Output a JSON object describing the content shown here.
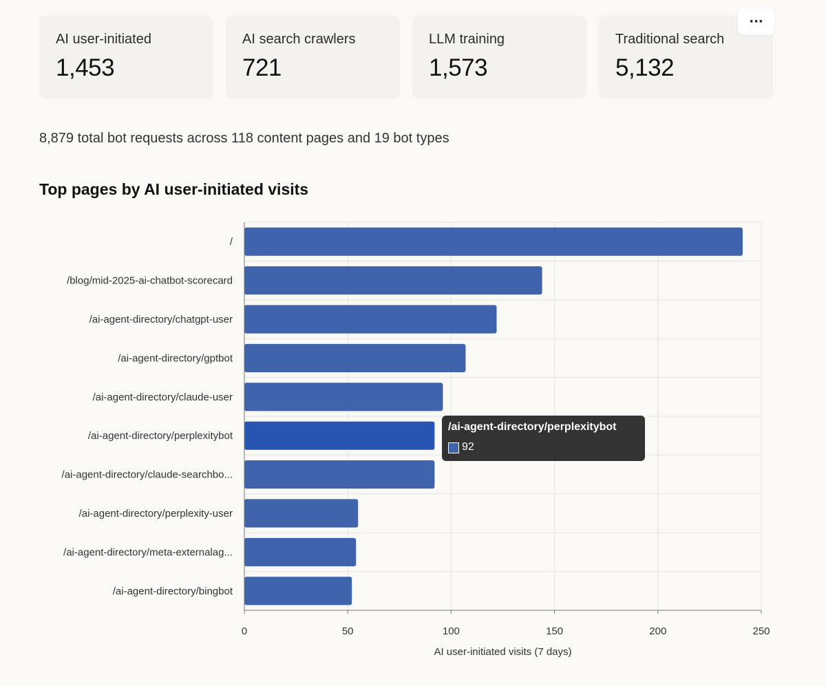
{
  "stats": [
    {
      "label": "AI user-initiated",
      "value": "1,453"
    },
    {
      "label": "AI search crawlers",
      "value": "721"
    },
    {
      "label": "LLM training",
      "value": "1,573"
    },
    {
      "label": "Traditional search",
      "value": "5,132"
    }
  ],
  "more_button": {
    "label": "···",
    "icon": "ellipsis-icon"
  },
  "summary": "8,879 total bot requests across 118 content pages and 19 bot types",
  "section_title": "Top pages by AI user-initiated visits",
  "tooltip": {
    "title": "/ai-agent-directory/perplexitybot",
    "value": "92"
  },
  "colors": {
    "bar": "#3f64ab",
    "bar_hover": "#2855b2",
    "grid": "#e6e5e2",
    "tooltip_bg": "#333333"
  },
  "chart_data": {
    "type": "bar",
    "orientation": "horizontal",
    "categories": [
      "/",
      "/blog/mid-2025-ai-chatbot-scorecard",
      "/ai-agent-directory/chatgpt-user",
      "/ai-agent-directory/gptbot",
      "/ai-agent-directory/claude-user",
      "/ai-agent-directory/perplexitybot",
      "/ai-agent-directory/claude-searchbo...",
      "/ai-agent-directory/perplexity-user",
      "/ai-agent-directory/meta-externalag...",
      "/ai-agent-directory/bingbot"
    ],
    "values": [
      241,
      144,
      122,
      107,
      96,
      92,
      92,
      55,
      54,
      52
    ],
    "highlighted_index": 5,
    "xlabel": "AI user-initiated visits (7 days)",
    "ylabel": "",
    "xlim": [
      0,
      250
    ],
    "xticks": [
      0,
      50,
      100,
      150,
      200,
      250
    ],
    "grid": true
  }
}
